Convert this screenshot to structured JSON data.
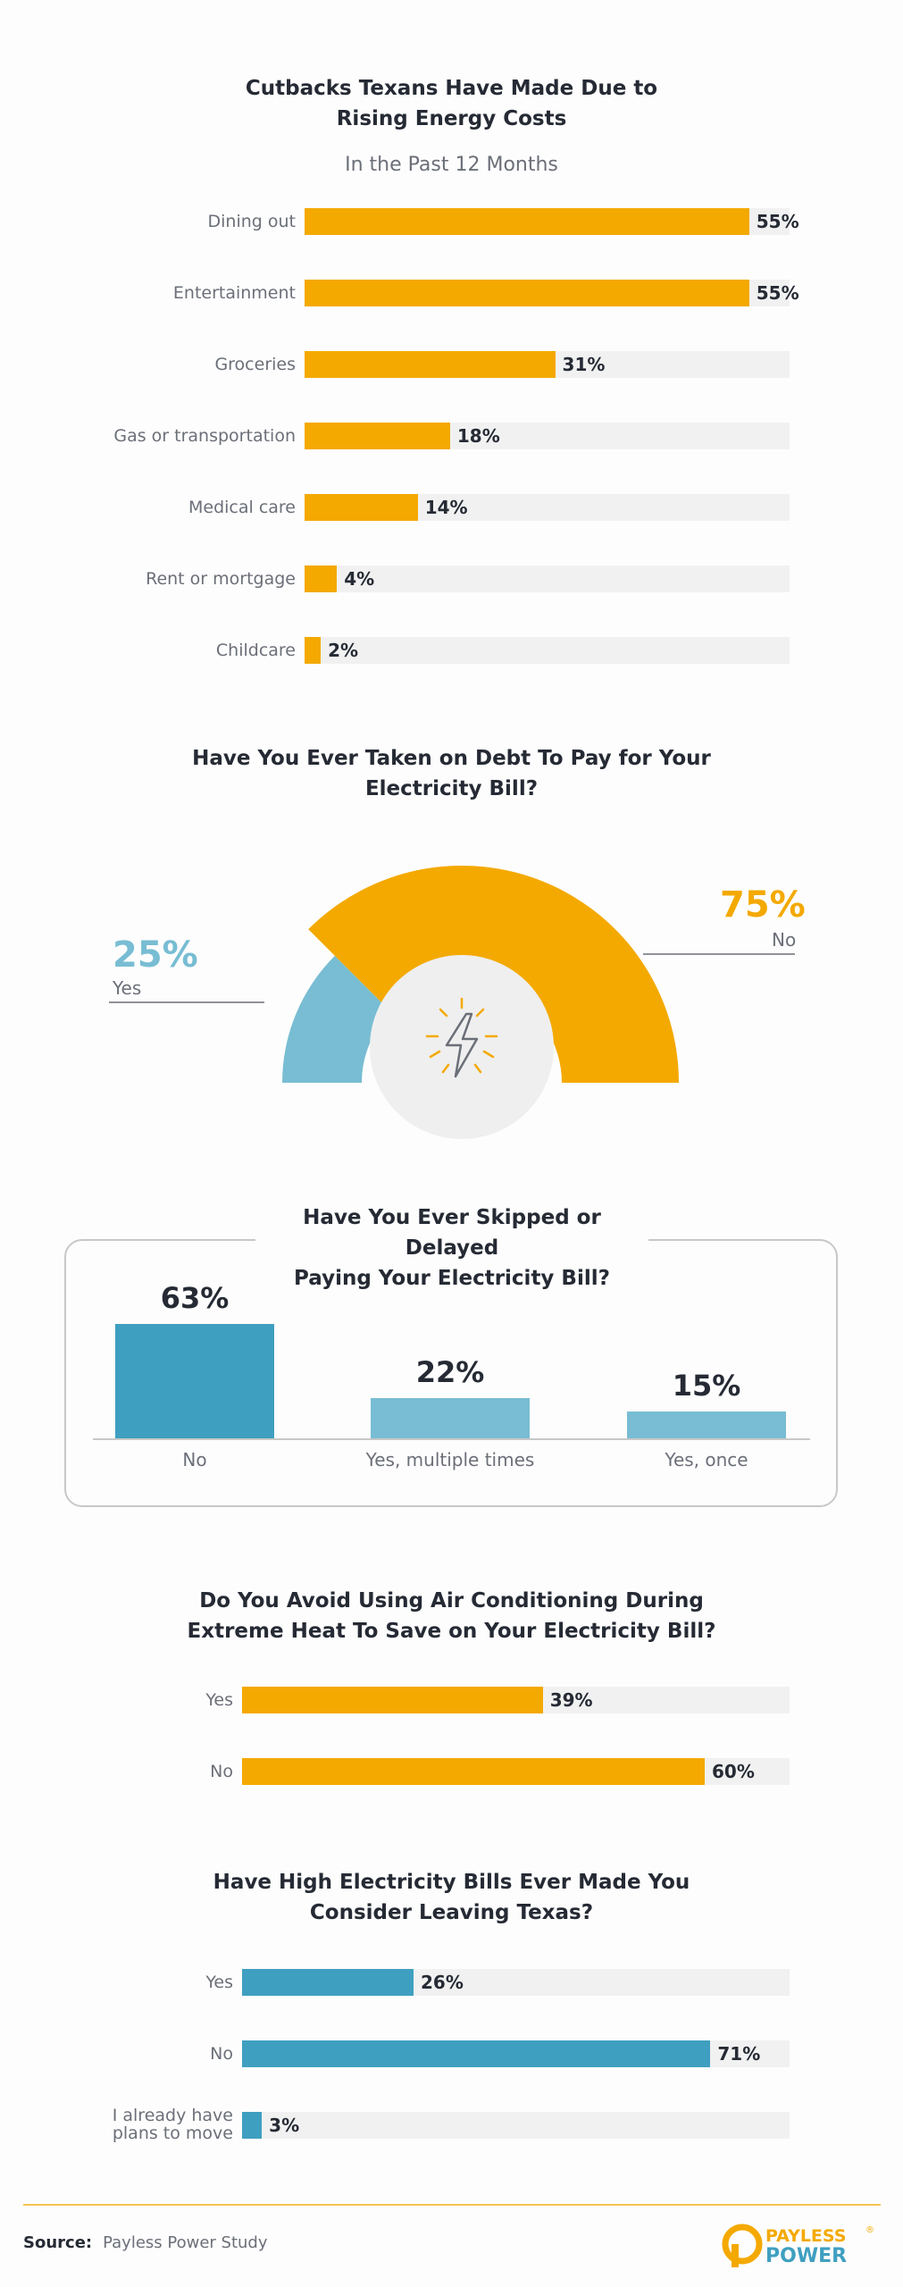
{
  "chart_data": [
    {
      "type": "bar",
      "orientation": "horizontal",
      "title_lines": [
        "Cutbacks Texans Have Made Due to",
        "Rising Energy Costs"
      ],
      "subtitle": "In the Past 12 Months",
      "categories": [
        "Dining out",
        "Entertainment",
        "Groceries",
        "Gas or transportation",
        "Medical care",
        "Rent or mortgage",
        "Childcare"
      ],
      "values": [
        55,
        55,
        31,
        18,
        14,
        4,
        2
      ],
      "value_labels": [
        "55%",
        "55%",
        "31%",
        "18%",
        "14%",
        "4%",
        "2%"
      ],
      "xlim": [
        0,
        60
      ],
      "color": "#f4a900"
    },
    {
      "type": "pie",
      "style": "half-donut gauge",
      "title_lines": [
        "Have You Ever Taken on Debt To Pay for Your",
        "Electricity Bill?"
      ],
      "categories": [
        "Yes",
        "No"
      ],
      "values": [
        25,
        75
      ],
      "value_labels": [
        "25%",
        "75%"
      ],
      "colors": [
        "#78bdd3",
        "#f4a900"
      ],
      "center_icon": "lightning-bolt-icon"
    },
    {
      "type": "bar",
      "orientation": "vertical",
      "title_lines": [
        "Have You Ever Skipped or Delayed",
        "Paying Your Electricity Bill?"
      ],
      "categories": [
        "No",
        "Yes, multiple times",
        "Yes, once"
      ],
      "values": [
        63,
        22,
        15
      ],
      "value_labels": [
        "63%",
        "22%",
        "15%"
      ],
      "colors": [
        "#3f9fc0",
        "#78bdd3",
        "#78bdd3"
      ]
    },
    {
      "type": "bar",
      "orientation": "horizontal",
      "title_lines": [
        "Do You Avoid Using Air Conditioning During",
        "Extreme Heat To Save on Your Electricity Bill?"
      ],
      "categories": [
        "Yes",
        "No"
      ],
      "values": [
        39,
        60
      ],
      "value_labels": [
        "39%",
        "60%"
      ],
      "xlim": [
        0,
        71
      ],
      "color": "#f4a900"
    },
    {
      "type": "bar",
      "orientation": "horizontal",
      "title_lines": [
        "Have High Electricity Bills Ever Made You",
        "Consider Leaving Texas?"
      ],
      "categories": [
        [
          "Yes"
        ],
        [
          "No"
        ],
        [
          "I already have",
          "plans to move"
        ]
      ],
      "values": [
        26,
        71,
        3
      ],
      "value_labels": [
        "26%",
        "71%",
        "3%"
      ],
      "xlim": [
        0,
        83
      ],
      "color": "#3f9fc0"
    }
  ],
  "footer": {
    "source_label": "Source:",
    "source_text": "Payless Power Study",
    "logo_line1": "PAYLESS",
    "logo_line2": "POWER",
    "logo_mark": "®"
  },
  "colors": {
    "track": "#f1f1f1",
    "text_dark": "#252a34",
    "text_muted": "#6b6f78",
    "accent_orange": "#f4a900",
    "accent_blue": "#3f9fc0",
    "accent_light_blue": "#78bdd3"
  }
}
